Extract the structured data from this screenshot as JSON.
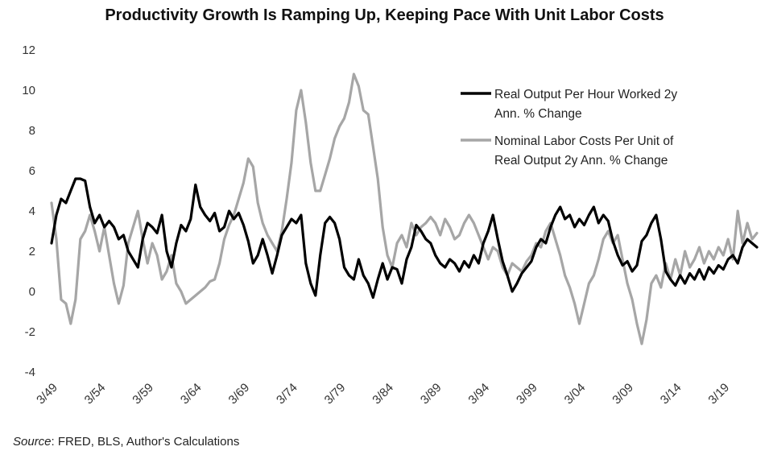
{
  "chart_data": {
    "type": "line",
    "title": "Productivity Growth Is Ramping Up, Keeping Pace With Unit Labor Costs",
    "xlabel": "",
    "ylabel": "",
    "x_ticks": [
      "3/49",
      "3/54",
      "3/59",
      "3/64",
      "3/69",
      "3/74",
      "3/79",
      "3/84",
      "3/89",
      "3/94",
      "3/99",
      "3/04",
      "3/09",
      "3/14",
      "3/19"
    ],
    "xlim": [
      1949.0,
      2022.5
    ],
    "ylim": [
      -4,
      12
    ],
    "y_ticks": [
      -4,
      -2,
      0,
      2,
      4,
      6,
      8,
      10,
      12
    ],
    "grid": false,
    "legend_position": "top-right",
    "series": [
      {
        "name": "Real Output Per Hour Worked 2y Ann. % Change",
        "legend_lines": [
          "Real Output Per Hour Worked 2y",
          "Ann. % Change"
        ],
        "color": "#000000",
        "points": [
          [
            1949.0,
            2.4
          ],
          [
            1949.5,
            3.8
          ],
          [
            1950.0,
            4.6
          ],
          [
            1950.5,
            4.4
          ],
          [
            1951.0,
            5.0
          ],
          [
            1951.5,
            5.6
          ],
          [
            1952.0,
            5.6
          ],
          [
            1952.5,
            5.5
          ],
          [
            1953.0,
            4.2
          ],
          [
            1953.5,
            3.4
          ],
          [
            1954.0,
            3.8
          ],
          [
            1954.5,
            3.2
          ],
          [
            1955.0,
            3.5
          ],
          [
            1955.5,
            3.2
          ],
          [
            1956.0,
            2.6
          ],
          [
            1956.5,
            2.8
          ],
          [
            1957.0,
            2.0
          ],
          [
            1957.5,
            1.6
          ],
          [
            1958.0,
            1.2
          ],
          [
            1958.5,
            2.6
          ],
          [
            1959.0,
            3.4
          ],
          [
            1959.5,
            3.2
          ],
          [
            1960.0,
            2.9
          ],
          [
            1960.5,
            3.8
          ],
          [
            1961.0,
            2.0
          ],
          [
            1961.5,
            1.2
          ],
          [
            1962.0,
            2.4
          ],
          [
            1962.5,
            3.3
          ],
          [
            1963.0,
            3.0
          ],
          [
            1963.5,
            3.6
          ],
          [
            1964.0,
            5.3
          ],
          [
            1964.5,
            4.2
          ],
          [
            1965.0,
            3.8
          ],
          [
            1965.5,
            3.5
          ],
          [
            1966.0,
            3.9
          ],
          [
            1966.5,
            3.0
          ],
          [
            1967.0,
            3.2
          ],
          [
            1967.5,
            4.0
          ],
          [
            1968.0,
            3.6
          ],
          [
            1968.5,
            3.9
          ],
          [
            1969.0,
            3.3
          ],
          [
            1969.5,
            2.5
          ],
          [
            1970.0,
            1.4
          ],
          [
            1970.5,
            1.8
          ],
          [
            1971.0,
            2.6
          ],
          [
            1971.5,
            1.8
          ],
          [
            1972.0,
            0.9
          ],
          [
            1972.5,
            1.8
          ],
          [
            1973.0,
            2.8
          ],
          [
            1973.5,
            3.2
          ],
          [
            1974.0,
            3.6
          ],
          [
            1974.5,
            3.4
          ],
          [
            1975.0,
            3.8
          ],
          [
            1975.5,
            1.4
          ],
          [
            1976.0,
            0.4
          ],
          [
            1976.5,
            -0.2
          ],
          [
            1977.0,
            1.8
          ],
          [
            1977.5,
            3.4
          ],
          [
            1978.0,
            3.7
          ],
          [
            1978.5,
            3.4
          ],
          [
            1979.0,
            2.6
          ],
          [
            1979.5,
            1.2
          ],
          [
            1980.0,
            0.8
          ],
          [
            1980.5,
            0.6
          ],
          [
            1981.0,
            1.6
          ],
          [
            1981.5,
            0.8
          ],
          [
            1982.0,
            0.4
          ],
          [
            1982.5,
            -0.3
          ],
          [
            1983.0,
            0.6
          ],
          [
            1983.5,
            1.4
          ],
          [
            1984.0,
            0.6
          ],
          [
            1984.5,
            1.2
          ],
          [
            1985.0,
            1.1
          ],
          [
            1985.5,
            0.4
          ],
          [
            1986.0,
            1.6
          ],
          [
            1986.5,
            2.2
          ],
          [
            1987.0,
            3.3
          ],
          [
            1987.5,
            3.0
          ],
          [
            1988.0,
            2.6
          ],
          [
            1988.5,
            2.4
          ],
          [
            1989.0,
            1.8
          ],
          [
            1989.5,
            1.4
          ],
          [
            1990.0,
            1.2
          ],
          [
            1990.5,
            1.6
          ],
          [
            1991.0,
            1.4
          ],
          [
            1991.5,
            1.0
          ],
          [
            1992.0,
            1.5
          ],
          [
            1992.5,
            1.2
          ],
          [
            1993.0,
            1.8
          ],
          [
            1993.5,
            1.4
          ],
          [
            1994.0,
            2.4
          ],
          [
            1994.5,
            3.0
          ],
          [
            1995.0,
            3.8
          ],
          [
            1995.5,
            2.6
          ],
          [
            1996.0,
            1.5
          ],
          [
            1996.5,
            0.8
          ],
          [
            1997.0,
            0.0
          ],
          [
            1997.5,
            0.4
          ],
          [
            1998.0,
            0.9
          ],
          [
            1998.5,
            1.2
          ],
          [
            1999.0,
            1.5
          ],
          [
            1999.5,
            2.2
          ],
          [
            2000.0,
            2.6
          ],
          [
            2000.5,
            2.4
          ],
          [
            2001.0,
            3.2
          ],
          [
            2001.5,
            3.8
          ],
          [
            2002.0,
            4.2
          ],
          [
            2002.5,
            3.6
          ],
          [
            2003.0,
            3.8
          ],
          [
            2003.5,
            3.2
          ],
          [
            2004.0,
            3.6
          ],
          [
            2004.5,
            3.3
          ],
          [
            2005.0,
            3.8
          ],
          [
            2005.5,
            4.2
          ],
          [
            2006.0,
            3.4
          ],
          [
            2006.5,
            3.8
          ],
          [
            2007.0,
            3.5
          ],
          [
            2007.5,
            2.5
          ],
          [
            2008.0,
            1.8
          ],
          [
            2008.5,
            1.3
          ],
          [
            2009.0,
            1.5
          ],
          [
            2009.5,
            1.0
          ],
          [
            2010.0,
            1.3
          ],
          [
            2010.5,
            2.5
          ],
          [
            2011.0,
            2.8
          ],
          [
            2011.5,
            3.4
          ],
          [
            2012.0,
            3.8
          ],
          [
            2012.5,
            2.6
          ],
          [
            2013.0,
            1.0
          ],
          [
            2013.5,
            0.6
          ],
          [
            2014.0,
            0.3
          ],
          [
            2014.5,
            0.8
          ],
          [
            2015.0,
            0.4
          ],
          [
            2015.5,
            0.9
          ],
          [
            2016.0,
            0.6
          ],
          [
            2016.5,
            1.1
          ],
          [
            2017.0,
            0.6
          ],
          [
            2017.5,
            1.2
          ],
          [
            2018.0,
            0.9
          ],
          [
            2018.5,
            1.3
          ],
          [
            2019.0,
            1.1
          ],
          [
            2019.5,
            1.6
          ],
          [
            2020.0,
            1.8
          ],
          [
            2020.5,
            1.4
          ],
          [
            2021.0,
            2.2
          ],
          [
            2021.5,
            2.6
          ],
          [
            2022.0,
            2.4
          ],
          [
            2022.5,
            2.2
          ]
        ]
      },
      {
        "name": "Nominal Labor Costs Per Unit of Real Output 2y Ann. % Change",
        "legend_lines": [
          "Nominal Labor Costs Per Unit of",
          "Real Output 2y Ann. % Change"
        ],
        "color": "#a6a6a6",
        "points": [
          [
            1949.0,
            4.4
          ],
          [
            1949.5,
            2.6
          ],
          [
            1950.0,
            -0.4
          ],
          [
            1950.5,
            -0.6
          ],
          [
            1951.0,
            -1.6
          ],
          [
            1951.5,
            -0.4
          ],
          [
            1952.0,
            2.6
          ],
          [
            1952.5,
            3.0
          ],
          [
            1953.0,
            3.8
          ],
          [
            1953.5,
            3.0
          ],
          [
            1954.0,
            2.0
          ],
          [
            1954.5,
            3.2
          ],
          [
            1955.0,
            1.8
          ],
          [
            1955.5,
            0.4
          ],
          [
            1956.0,
            -0.6
          ],
          [
            1956.5,
            0.3
          ],
          [
            1957.0,
            2.4
          ],
          [
            1957.5,
            3.2
          ],
          [
            1958.0,
            4.0
          ],
          [
            1958.5,
            2.6
          ],
          [
            1959.0,
            1.4
          ],
          [
            1959.5,
            2.4
          ],
          [
            1960.0,
            1.8
          ],
          [
            1960.5,
            0.6
          ],
          [
            1961.0,
            1.0
          ],
          [
            1961.5,
            1.8
          ],
          [
            1962.0,
            0.4
          ],
          [
            1962.5,
            0.0
          ],
          [
            1963.0,
            -0.6
          ],
          [
            1963.5,
            -0.4
          ],
          [
            1964.0,
            -0.2
          ],
          [
            1964.5,
            0.0
          ],
          [
            1965.0,
            0.2
          ],
          [
            1965.5,
            0.5
          ],
          [
            1966.0,
            0.6
          ],
          [
            1966.5,
            1.4
          ],
          [
            1967.0,
            2.6
          ],
          [
            1967.5,
            3.3
          ],
          [
            1968.0,
            3.8
          ],
          [
            1968.5,
            4.6
          ],
          [
            1969.0,
            5.4
          ],
          [
            1969.5,
            6.6
          ],
          [
            1970.0,
            6.2
          ],
          [
            1970.5,
            4.4
          ],
          [
            1971.0,
            3.4
          ],
          [
            1971.5,
            2.8
          ],
          [
            1972.0,
            2.4
          ],
          [
            1972.5,
            2.0
          ],
          [
            1973.0,
            3.0
          ],
          [
            1973.5,
            4.6
          ],
          [
            1974.0,
            6.4
          ],
          [
            1974.5,
            9.0
          ],
          [
            1975.0,
            10.0
          ],
          [
            1975.5,
            8.4
          ],
          [
            1976.0,
            6.4
          ],
          [
            1976.5,
            5.0
          ],
          [
            1977.0,
            5.0
          ],
          [
            1977.5,
            5.8
          ],
          [
            1978.0,
            6.6
          ],
          [
            1978.5,
            7.6
          ],
          [
            1979.0,
            8.2
          ],
          [
            1979.5,
            8.6
          ],
          [
            1980.0,
            9.4
          ],
          [
            1980.5,
            10.8
          ],
          [
            1981.0,
            10.2
          ],
          [
            1981.5,
            9.0
          ],
          [
            1982.0,
            8.8
          ],
          [
            1982.5,
            7.2
          ],
          [
            1983.0,
            5.6
          ],
          [
            1983.5,
            3.2
          ],
          [
            1984.0,
            1.8
          ],
          [
            1984.5,
            1.2
          ],
          [
            1985.0,
            2.4
          ],
          [
            1985.5,
            2.8
          ],
          [
            1986.0,
            2.2
          ],
          [
            1986.5,
            3.4
          ],
          [
            1987.0,
            2.8
          ],
          [
            1987.5,
            3.2
          ],
          [
            1988.0,
            3.4
          ],
          [
            1988.5,
            3.7
          ],
          [
            1989.0,
            3.4
          ],
          [
            1989.5,
            2.8
          ],
          [
            1990.0,
            3.6
          ],
          [
            1990.5,
            3.2
          ],
          [
            1991.0,
            2.6
          ],
          [
            1991.5,
            2.8
          ],
          [
            1992.0,
            3.4
          ],
          [
            1992.5,
            3.8
          ],
          [
            1993.0,
            3.4
          ],
          [
            1993.5,
            2.8
          ],
          [
            1994.0,
            2.2
          ],
          [
            1994.5,
            1.6
          ],
          [
            1995.0,
            2.2
          ],
          [
            1995.5,
            2.0
          ],
          [
            1996.0,
            1.2
          ],
          [
            1996.5,
            0.8
          ],
          [
            1997.0,
            1.4
          ],
          [
            1997.5,
            1.2
          ],
          [
            1998.0,
            1.0
          ],
          [
            1998.5,
            1.5
          ],
          [
            1999.0,
            1.8
          ],
          [
            1999.5,
            2.4
          ],
          [
            2000.0,
            2.2
          ],
          [
            2000.5,
            3.0
          ],
          [
            2001.0,
            3.4
          ],
          [
            2001.5,
            2.6
          ],
          [
            2002.0,
            1.8
          ],
          [
            2002.5,
            0.8
          ],
          [
            2003.0,
            0.2
          ],
          [
            2003.5,
            -0.6
          ],
          [
            2004.0,
            -1.6
          ],
          [
            2004.5,
            -0.6
          ],
          [
            2005.0,
            0.4
          ],
          [
            2005.5,
            0.8
          ],
          [
            2006.0,
            1.6
          ],
          [
            2006.5,
            2.6
          ],
          [
            2007.0,
            3.0
          ],
          [
            2007.5,
            2.4
          ],
          [
            2008.0,
            2.8
          ],
          [
            2008.5,
            1.6
          ],
          [
            2009.0,
            0.4
          ],
          [
            2009.5,
            -0.4
          ],
          [
            2010.0,
            -1.6
          ],
          [
            2010.5,
            -2.6
          ],
          [
            2011.0,
            -1.4
          ],
          [
            2011.5,
            0.4
          ],
          [
            2012.0,
            0.8
          ],
          [
            2012.5,
            0.2
          ],
          [
            2013.0,
            1.4
          ],
          [
            2013.5,
            0.6
          ],
          [
            2014.0,
            1.6
          ],
          [
            2014.5,
            0.8
          ],
          [
            2015.0,
            2.0
          ],
          [
            2015.5,
            1.2
          ],
          [
            2016.0,
            1.6
          ],
          [
            2016.5,
            2.2
          ],
          [
            2017.0,
            1.4
          ],
          [
            2017.5,
            2.0
          ],
          [
            2018.0,
            1.6
          ],
          [
            2018.5,
            2.2
          ],
          [
            2019.0,
            1.8
          ],
          [
            2019.5,
            2.6
          ],
          [
            2020.0,
            1.6
          ],
          [
            2020.5,
            4.0
          ],
          [
            2021.0,
            2.4
          ],
          [
            2021.5,
            3.4
          ],
          [
            2022.0,
            2.6
          ],
          [
            2022.5,
            2.9
          ]
        ]
      }
    ]
  },
  "source": {
    "label": "Source",
    "text": ": FRED, BLS, Author's Calculations"
  }
}
